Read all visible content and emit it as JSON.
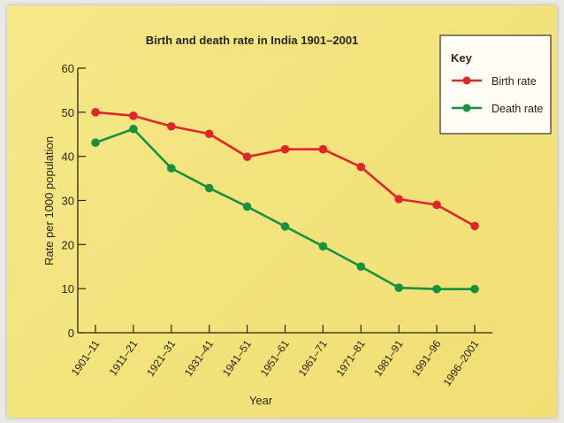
{
  "chart_data": {
    "type": "line",
    "title": "Birth and death rate in India 1901–2001",
    "xlabel": "Year",
    "ylabel": "Rate per 1000 population",
    "ylim": [
      0,
      60
    ],
    "yticks": [
      0,
      10,
      20,
      30,
      40,
      50,
      60
    ],
    "categories": [
      "1901–11",
      "1911–21",
      "1921–31",
      "1931–41",
      "1941–51",
      "1951–61",
      "1961–71",
      "1971–81",
      "1981–91",
      "1991–96",
      "1996–2001"
    ],
    "series": [
      {
        "name": "Birth rate",
        "color": "#e0262a",
        "values": [
          50,
          49.2,
          46.8,
          45.1,
          39.9,
          41.6,
          41.6,
          37.6,
          30.3,
          29.0,
          24.2
        ]
      },
      {
        "name": "Death rate",
        "color": "#16923f",
        "values": [
          43.1,
          46.2,
          37.3,
          32.8,
          28.6,
          24.1,
          19.6,
          15.0,
          10.2,
          9.9,
          9.9
        ]
      }
    ],
    "legend": {
      "title": "Key",
      "placement": "top-right"
    },
    "grid": false
  }
}
